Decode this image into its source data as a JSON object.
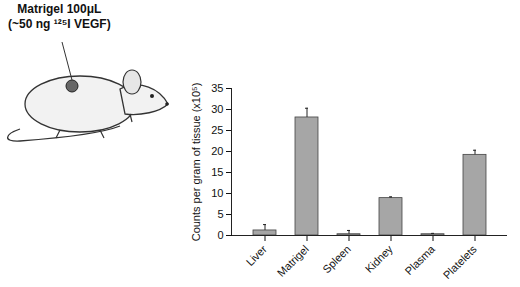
{
  "chart_data": {
    "type": "bar",
    "annotations": [
      "Matrigel 100μL",
      "(~50 ng ¹²⁵I VEGF)"
    ],
    "categories": [
      "Liver",
      "Matrigel",
      "Spleen",
      "Kidney",
      "Plasma",
      "Platelets"
    ],
    "values": [
      1.2,
      28.1,
      0.3,
      8.9,
      0.3,
      19.2
    ],
    "errors": [
      1.4,
      2.2,
      0.9,
      0.3,
      0.2,
      1.1
    ],
    "color": "#a6a6a6",
    "ylabel": "Counts per gram of tissue (x10⁵)",
    "ylim": [
      0,
      35
    ],
    "yticks": [
      0,
      5,
      10,
      15,
      20,
      25,
      30,
      35
    ]
  }
}
